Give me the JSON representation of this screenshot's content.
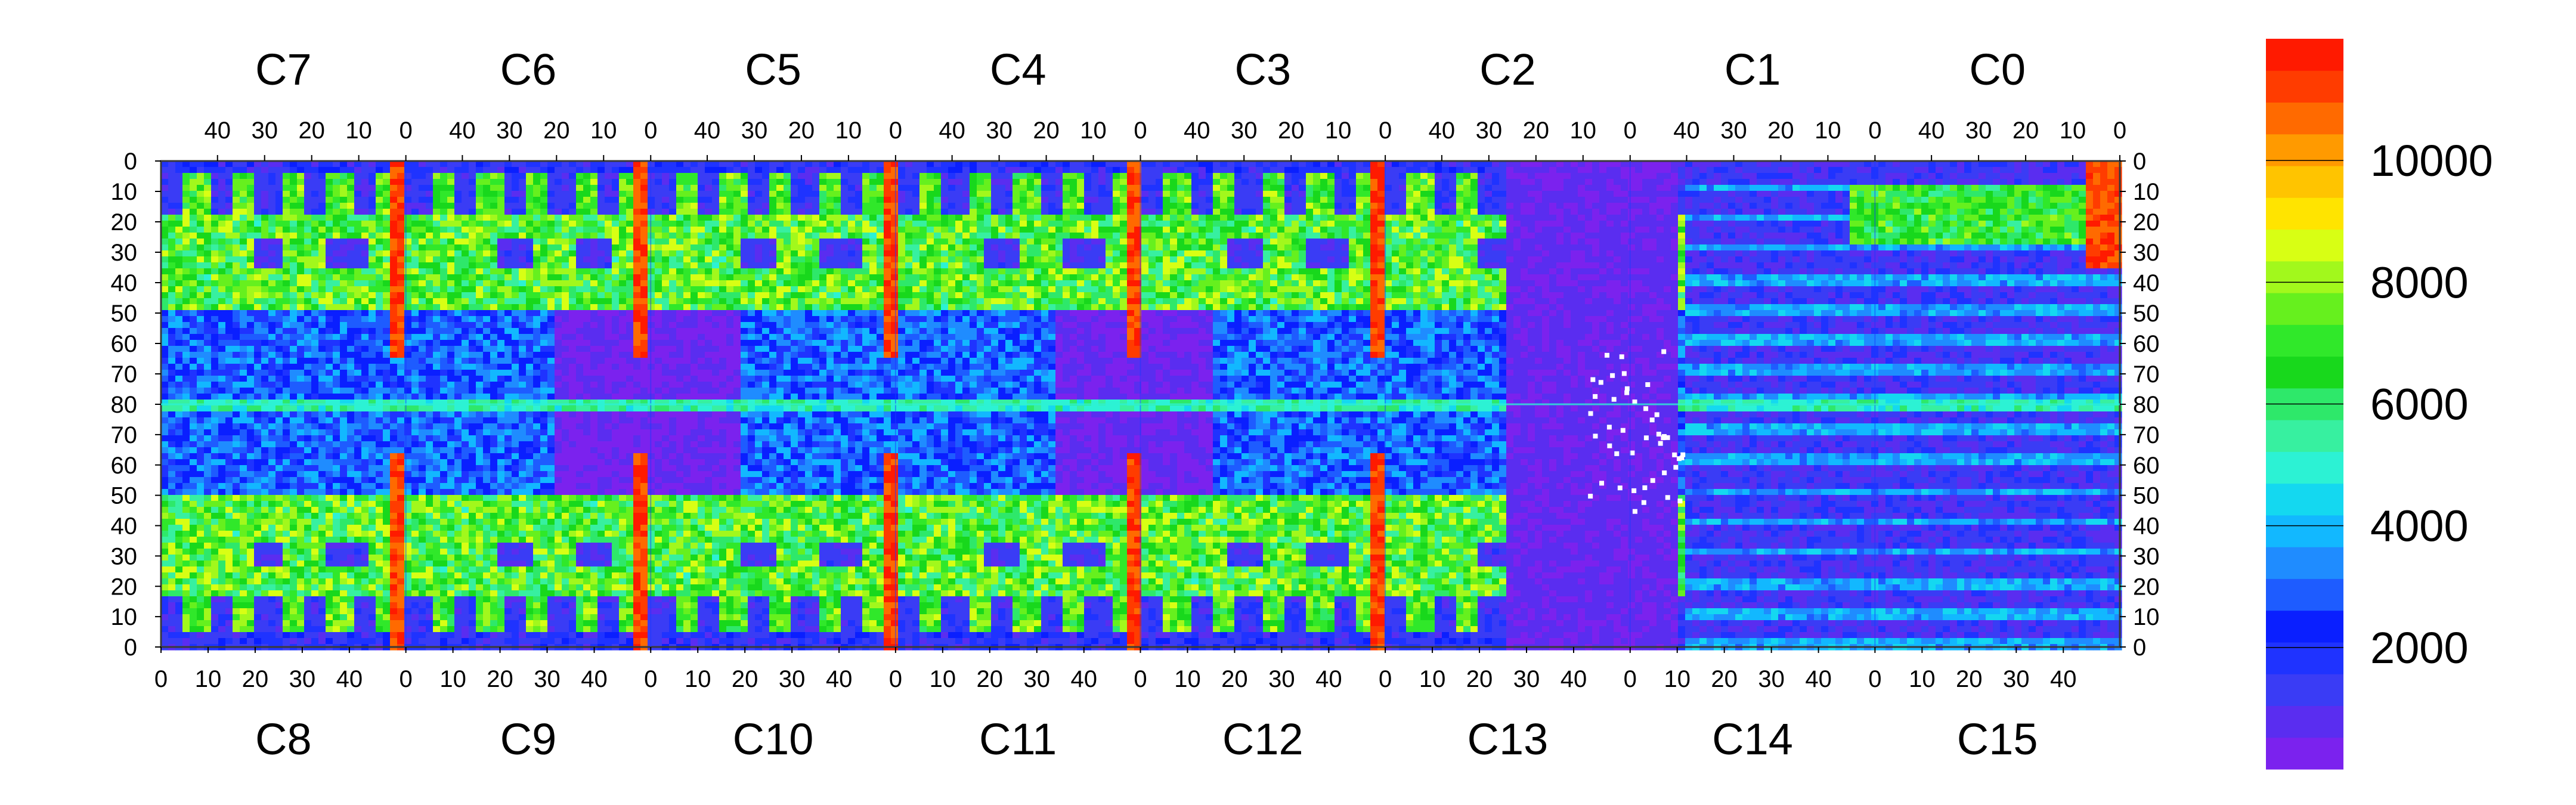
{
  "chart_data": {
    "type": "heatmap",
    "title": "",
    "xlabel": "",
    "ylabel": "",
    "grid": false,
    "layout": "16 chips in two rows of 8; top row C7..C0 reading right-to-left, bottom row C8..C15 reading left-to-right; chip columns 0-50, rows 0-80 (row 80 at the seam)",
    "top_chip_labels": [
      "C7",
      "C6",
      "C5",
      "C4",
      "C3",
      "C2",
      "C1",
      "C0"
    ],
    "bottom_chip_labels": [
      "C8",
      "C9",
      "C10",
      "C11",
      "C12",
      "C13",
      "C14",
      "C15"
    ],
    "top_x_tick_labels": [
      "40",
      "30",
      "20",
      "10",
      "0"
    ],
    "bottom_x_tick_labels": [
      "0",
      "10",
      "20",
      "30",
      "40"
    ],
    "y_tick_labels_top_half": [
      "0",
      "10",
      "20",
      "30",
      "40",
      "50",
      "60",
      "70",
      "80"
    ],
    "y_tick_labels_bottom_half": [
      "70",
      "60",
      "50",
      "40",
      "30",
      "20",
      "10",
      "0"
    ],
    "colorbar": {
      "range": [
        0,
        12000
      ],
      "tick_labels": [
        "2000",
        "4000",
        "6000",
        "8000",
        "10000"
      ],
      "tick_values": [
        2000,
        4000,
        6000,
        8000,
        10000
      ],
      "colors": [
        "#7b22ee",
        "#5a2df0",
        "#3a3cf5",
        "#1f33ff",
        "#0a1fff",
        "#1e5cff",
        "#1f8cff",
        "#12b8ff",
        "#14d8f0",
        "#2cf2d4",
        "#37f0a0",
        "#2ee86a",
        "#18d81c",
        "#30e82a",
        "#66f01e",
        "#a2f81c",
        "#d8ff14",
        "#ffe400",
        "#ffc400",
        "#ff9a00",
        "#ff6a00",
        "#ff3c00",
        "#ff1a00"
      ]
    },
    "approx_typical_values_by_region": [
      {
        "region": "chip background (top/bottom rows)",
        "value": 2500
      },
      {
        "region": "busy regions (green/yellow)",
        "value": 7000
      },
      {
        "region": "chip edge columns",
        "value": 10500
      },
      {
        "region": "low-count blocks (C5/C6, C3/C4, C13-C14 gap)",
        "value": 300
      },
      {
        "region": "seam row 80",
        "value": 4500
      }
    ]
  }
}
